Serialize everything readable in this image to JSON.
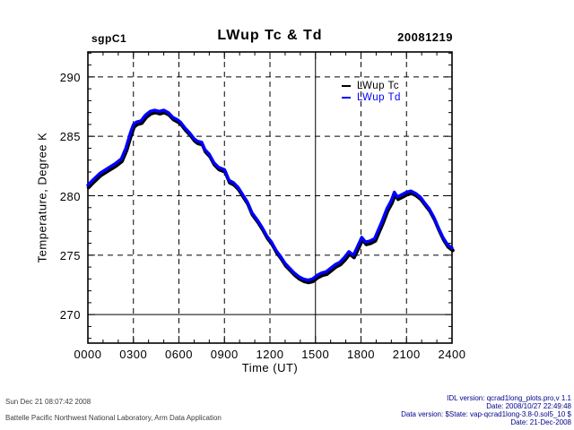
{
  "header": {
    "site": "sgpC1",
    "title": "LWup Tc & Td",
    "date": "20081219"
  },
  "legend": {
    "position": "top-right-inside",
    "entries": [
      {
        "label": "LWup Tc",
        "color": "#000000"
      },
      {
        "label": "LWup Td",
        "color": "#0000ff"
      }
    ]
  },
  "footer": {
    "left_lines": [
      "Sun Dec 21 08:07:42 2008",
      "Battelle Pacific Northwest National Laboratory, Arm Data Application"
    ],
    "right_lines": [
      "IDL version: qcrad1long_plots.pro,v 1.1",
      "Date: 2008/10/27 22:49:48",
      "Data version: $State: vap-qcrad1long-3.8-0.sol5_10 $",
      "Date: 21-Dec-2008"
    ],
    "right_color": "#00008b"
  },
  "chart_data": {
    "type": "line",
    "title": "LWup Tc & Td",
    "xlabel": "Time (UT)",
    "ylabel": "Temperature, Degree K",
    "xlim": [
      0,
      24
    ],
    "ylim": [
      267.6,
      292.1
    ],
    "grid": {
      "on": true,
      "style": "dashed",
      "solid_x_line": 15,
      "solid_y_line": 270
    },
    "xticks": {
      "major_values": [
        0,
        3,
        6,
        9,
        12,
        15,
        18,
        21,
        24
      ],
      "labels": [
        "0000",
        "0300",
        "0600",
        "0900",
        "1200",
        "1500",
        "1800",
        "2100",
        "2400"
      ],
      "minor_step": 1
    },
    "yticks": {
      "major_values": [
        270,
        275,
        280,
        285,
        290
      ],
      "labels": [
        "270",
        "275",
        "280",
        "285",
        "290"
      ],
      "minor_step": 1
    },
    "x_hours": [
      0,
      0.3,
      0.8,
      1.3,
      1.8,
      2.2,
      2.5,
      2.8,
      3.0,
      3.2,
      3.5,
      3.8,
      4.1,
      4.4,
      4.7,
      5.0,
      5.3,
      5.6,
      5.9,
      6.1,
      6.4,
      6.7,
      7.0,
      7.2,
      7.5,
      7.7,
      8.0,
      8.3,
      8.6,
      9.0,
      9.3,
      9.6,
      9.9,
      10.2,
      10.5,
      10.8,
      11.2,
      11.5,
      11.8,
      12.1,
      12.4,
      12.7,
      13.0,
      13.3,
      13.6,
      13.9,
      14.2,
      14.5,
      14.8,
      15.1,
      15.4,
      15.7,
      16.0,
      16.3,
      16.6,
      16.9,
      17.2,
      17.5,
      17.8,
      18.05,
      18.3,
      18.6,
      18.9,
      19.1,
      19.4,
      19.7,
      20.0,
      20.2,
      20.4,
      20.7,
      21.0,
      21.3,
      21.6,
      21.9,
      22.2,
      22.5,
      22.8,
      23.1,
      23.4,
      23.7,
      24.0
    ],
    "series": [
      {
        "name": "LWup Tc",
        "color": "#000000",
        "values": [
          280.75,
          281.15,
          281.75,
          282.15,
          282.55,
          282.95,
          283.85,
          285.15,
          285.85,
          286.05,
          286.15,
          286.65,
          286.95,
          287.05,
          286.95,
          287.05,
          286.85,
          286.45,
          286.25,
          286.05,
          285.55,
          285.15,
          284.65,
          284.45,
          284.35,
          283.75,
          283.35,
          282.65,
          282.25,
          282.05,
          281.15,
          280.95,
          280.55,
          279.95,
          279.35,
          278.45,
          277.75,
          277.15,
          276.45,
          275.95,
          275.25,
          274.75,
          274.15,
          273.75,
          273.35,
          273.05,
          272.85,
          272.75,
          272.85,
          273.15,
          273.35,
          273.45,
          273.75,
          274.05,
          274.25,
          274.65,
          275.15,
          274.85,
          275.65,
          276.35,
          275.95,
          276.05,
          276.25,
          276.85,
          277.75,
          278.75,
          279.45,
          280.15,
          279.75,
          279.95,
          280.15,
          280.25,
          280.05,
          279.75,
          279.25,
          278.75,
          278.05,
          277.15,
          276.35,
          275.75,
          275.45
        ]
      },
      {
        "name": "LWup Td",
        "color": "#0000ff",
        "values": [
          280.9,
          281.3,
          281.9,
          282.3,
          282.7,
          283.1,
          284.0,
          285.3,
          286.0,
          286.2,
          286.3,
          286.8,
          287.1,
          287.2,
          287.1,
          287.2,
          287.0,
          286.6,
          286.4,
          286.2,
          285.7,
          285.3,
          284.8,
          284.6,
          284.5,
          283.9,
          283.5,
          282.8,
          282.4,
          282.2,
          281.3,
          281.1,
          280.7,
          280.1,
          279.5,
          278.6,
          277.9,
          277.3,
          276.6,
          276.1,
          275.4,
          274.9,
          274.3,
          273.9,
          273.5,
          273.2,
          273.0,
          272.9,
          273.0,
          273.3,
          273.5,
          273.6,
          273.9,
          274.2,
          274.4,
          274.8,
          275.3,
          275.0,
          275.8,
          276.5,
          276.1,
          276.2,
          276.4,
          277.0,
          277.9,
          278.9,
          279.6,
          280.3,
          279.9,
          280.1,
          280.3,
          280.4,
          280.2,
          279.9,
          279.4,
          278.9,
          278.2,
          277.3,
          276.5,
          275.9,
          275.6
        ]
      }
    ]
  }
}
